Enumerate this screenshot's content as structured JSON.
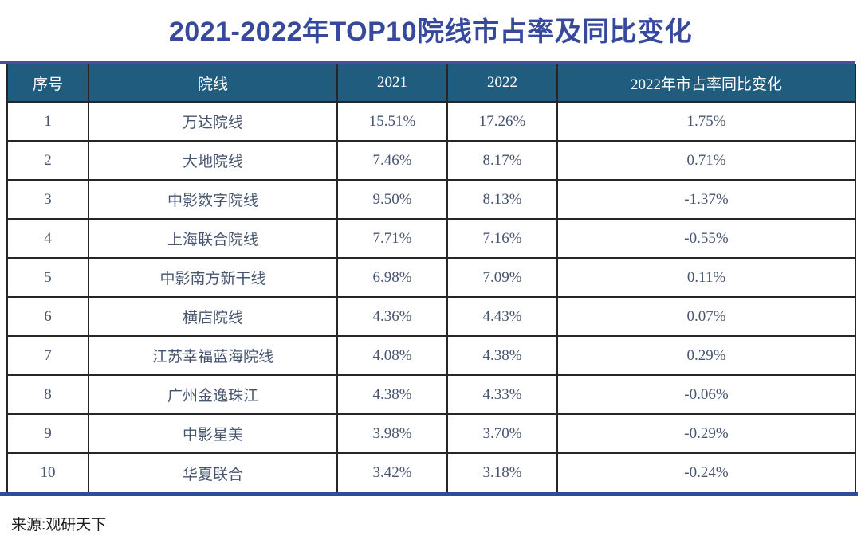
{
  "title": "2021-2022年TOP10院线市占率及同比变化",
  "source": "来源:观研天下",
  "colors": {
    "title": "#36499c",
    "top_line": "#4c4ba6",
    "header_bg": "#1f5c7e",
    "header_text": "#ffffff",
    "body_text": "#475570",
    "border": "#262626",
    "bottom_line": "#2e4b9e",
    "source_text": "#1c1c1c",
    "page_bg": "#ffffff"
  },
  "chart_data": {
    "type": "table",
    "title": "2021-2022年TOP10院线市占率及同比变化",
    "columns": [
      "序号",
      "院线",
      "2021",
      "2022",
      "2022年市占率同比变化"
    ],
    "rows": [
      [
        "1",
        "万达院线",
        "15.51%",
        "17.26%",
        "1.75%"
      ],
      [
        "2",
        "大地院线",
        "7.46%",
        "8.17%",
        "0.71%"
      ],
      [
        "3",
        "中影数字院线",
        "9.50%",
        "8.13%",
        "-1.37%"
      ],
      [
        "4",
        "上海联合院线",
        "7.71%",
        "7.16%",
        "-0.55%"
      ],
      [
        "5",
        "中影南方新干线",
        "6.98%",
        "7.09%",
        "0.11%"
      ],
      [
        "6",
        "横店院线",
        "4.36%",
        "4.43%",
        "0.07%"
      ],
      [
        "7",
        "江苏幸福蓝海院线",
        "4.08%",
        "4.38%",
        "0.29%"
      ],
      [
        "8",
        "广州金逸珠江",
        "4.38%",
        "4.33%",
        "-0.06%"
      ],
      [
        "9",
        "中影星美",
        "3.98%",
        "3.70%",
        "-0.29%"
      ],
      [
        "10",
        "华夏联合",
        "3.42%",
        "3.18%",
        "-0.24%"
      ]
    ],
    "source": "来源:观研天下"
  }
}
